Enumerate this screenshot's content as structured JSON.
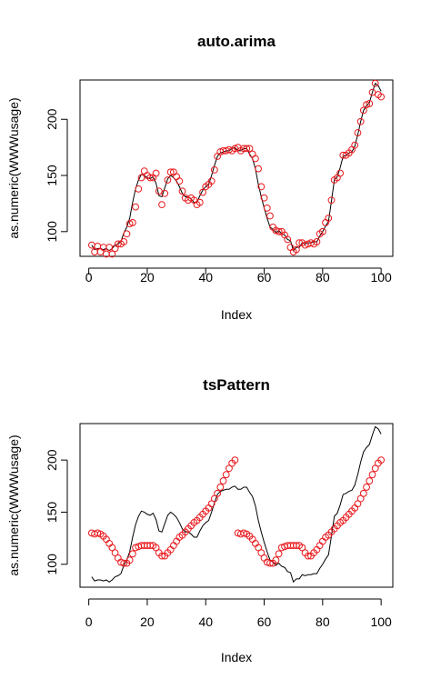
{
  "chart_data": [
    {
      "type": "line",
      "title": "auto.arima",
      "xlabel": "Index",
      "ylabel": "as.numeric(WWWusage)",
      "xlim": [
        -3,
        104
      ],
      "ylim": [
        78,
        235
      ],
      "xticks": [
        0,
        20,
        40,
        60,
        80,
        100
      ],
      "yticks": [
        100,
        150,
        200
      ],
      "grid": false,
      "legend": "none",
      "series": [
        {
          "style": "line",
          "color": "#000000",
          "values": [
            88,
            84,
            85,
            85,
            84,
            85,
            83,
            85,
            88,
            89,
            91,
            99,
            104,
            112,
            126,
            138,
            146,
            151,
            150,
            148,
            147,
            149,
            143,
            132,
            131,
            139,
            147,
            150,
            148,
            145,
            140,
            134,
            131,
            131,
            129,
            126,
            126,
            132,
            137,
            140,
            142,
            150,
            159,
            167,
            170,
            171,
            172,
            172,
            174,
            175,
            172,
            172,
            174,
            174,
            169,
            165,
            156,
            142,
            131,
            121,
            112,
            104,
            102,
            99,
            101,
            98,
            97,
            93,
            92,
            83,
            86,
            86,
            90,
            89,
            90,
            90,
            91,
            91,
            96,
            100,
            105,
            109,
            127,
            146,
            149,
            157,
            167,
            168,
            170,
            171,
            176,
            186,
            198,
            208,
            212,
            215,
            224,
            232,
            230,
            225
          ]
        },
        {
          "style": "points",
          "marker": "circle",
          "color": "#e8191d",
          "values": [
            88,
            82,
            87,
            82,
            86,
            80,
            86,
            80,
            85,
            89,
            89,
            91,
            98,
            107,
            108,
            122,
            138,
            148,
            154,
            150,
            148,
            148,
            152,
            136,
            124,
            134,
            146,
            153,
            153,
            149,
            145,
            136,
            130,
            128,
            130,
            128,
            124,
            126,
            135,
            140,
            142,
            145,
            155,
            167,
            171,
            172,
            172,
            173,
            172,
            174,
            175,
            172,
            174,
            174,
            174,
            169,
            165,
            156,
            140,
            130,
            121,
            114,
            104,
            101,
            100,
            100,
            97,
            93,
            86,
            82,
            84,
            90,
            90,
            88,
            89,
            90,
            89,
            91,
            98,
            100,
            108,
            112,
            128,
            146,
            148,
            152,
            168,
            168,
            170,
            173,
            177,
            188,
            198,
            208,
            213,
            214,
            224,
            232,
            222,
            220
          ]
        }
      ]
    },
    {
      "type": "line",
      "title": "tsPattern",
      "xlabel": "Index",
      "ylabel": "as.numeric(WWWusage)",
      "xlim": [
        -3,
        104
      ],
      "ylim": [
        78,
        235
      ],
      "xticks": [
        0,
        20,
        40,
        60,
        80,
        100
      ],
      "yticks": [
        100,
        150,
        200
      ],
      "grid": false,
      "legend": "none",
      "series": [
        {
          "style": "line",
          "color": "#000000",
          "values": [
            88,
            84,
            85,
            85,
            84,
            85,
            83,
            85,
            88,
            89,
            91,
            99,
            104,
            112,
            126,
            138,
            146,
            151,
            150,
            148,
            147,
            149,
            143,
            132,
            131,
            139,
            147,
            150,
            148,
            145,
            140,
            134,
            131,
            131,
            129,
            126,
            126,
            132,
            137,
            140,
            142,
            150,
            159,
            167,
            170,
            171,
            172,
            172,
            174,
            175,
            172,
            172,
            174,
            174,
            169,
            165,
            156,
            142,
            131,
            121,
            112,
            104,
            102,
            99,
            101,
            98,
            97,
            93,
            92,
            83,
            86,
            86,
            90,
            89,
            90,
            90,
            91,
            91,
            96,
            100,
            105,
            109,
            127,
            146,
            149,
            157,
            167,
            168,
            170,
            171,
            176,
            186,
            198,
            208,
            212,
            215,
            224,
            232,
            230,
            225
          ]
        },
        {
          "style": "points",
          "marker": "circle",
          "color": "#e8191d",
          "values": [
            130,
            129,
            130,
            129,
            127,
            124,
            120,
            116,
            111,
            106,
            102,
            101,
            101,
            104,
            110,
            116,
            117,
            118,
            118,
            118,
            118,
            118,
            116,
            111,
            108,
            108,
            111,
            114,
            118,
            122,
            126,
            128,
            131,
            134,
            137,
            140,
            142,
            145,
            148,
            151,
            154,
            158,
            163,
            168,
            174,
            180,
            186,
            192,
            197,
            200,
            130,
            129,
            130,
            129,
            127,
            124,
            120,
            116,
            111,
            106,
            102,
            101,
            101,
            104,
            110,
            116,
            117,
            118,
            118,
            118,
            118,
            118,
            116,
            111,
            108,
            108,
            111,
            114,
            118,
            122,
            126,
            128,
            131,
            134,
            137,
            140,
            142,
            145,
            148,
            151,
            154,
            158,
            163,
            168,
            174,
            180,
            186,
            192,
            197,
            200
          ]
        }
      ]
    }
  ]
}
